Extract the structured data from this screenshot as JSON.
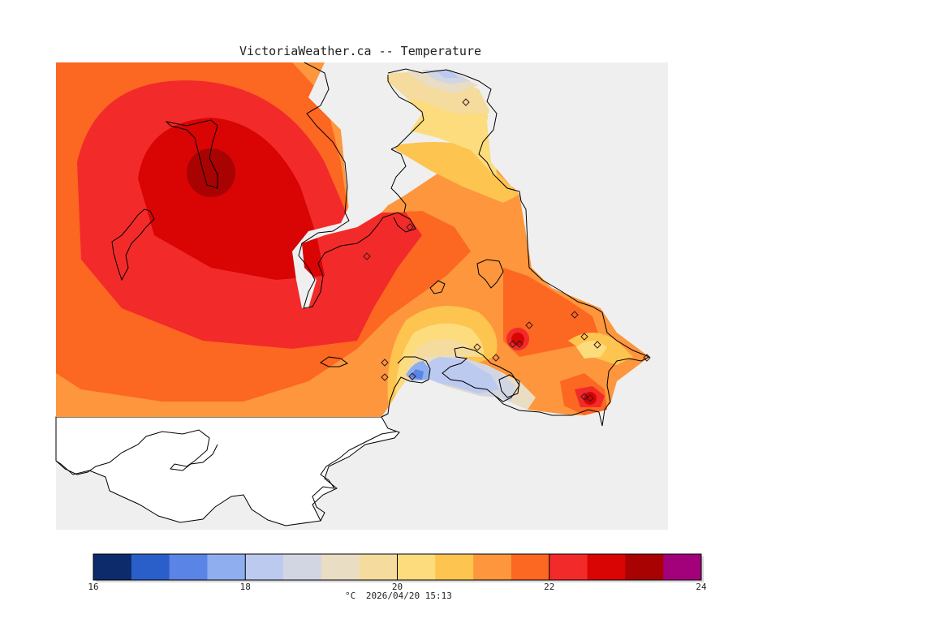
{
  "map": {
    "title": "VictoriaWeather.ca -- Temperature",
    "timestamp": "2026/04/20 15:13",
    "unit": "°C",
    "background_sea": "#efefef",
    "land_no_data": "#ffffff",
    "coast_color": "#000000",
    "station_marker": "diamond-icon",
    "station_count": 17
  },
  "colorbar": {
    "min": 16,
    "max": 24,
    "step": 0.5,
    "tick_values": [
      16,
      18,
      20,
      22,
      24
    ],
    "tick_labels": [
      "16",
      "18",
      "20",
      "22",
      "24"
    ],
    "colors": [
      "#0d2a6b",
      "#2a5fc9",
      "#5a84e6",
      "#8faeef",
      "#bccaef",
      "#d2d6e2",
      "#e9ddc3",
      "#f5dc9e",
      "#fddc7d",
      "#fdc44f",
      "#fd963d",
      "#fc6721",
      "#f22b2a",
      "#d90404",
      "#a80202",
      "#a3007c"
    ]
  }
}
